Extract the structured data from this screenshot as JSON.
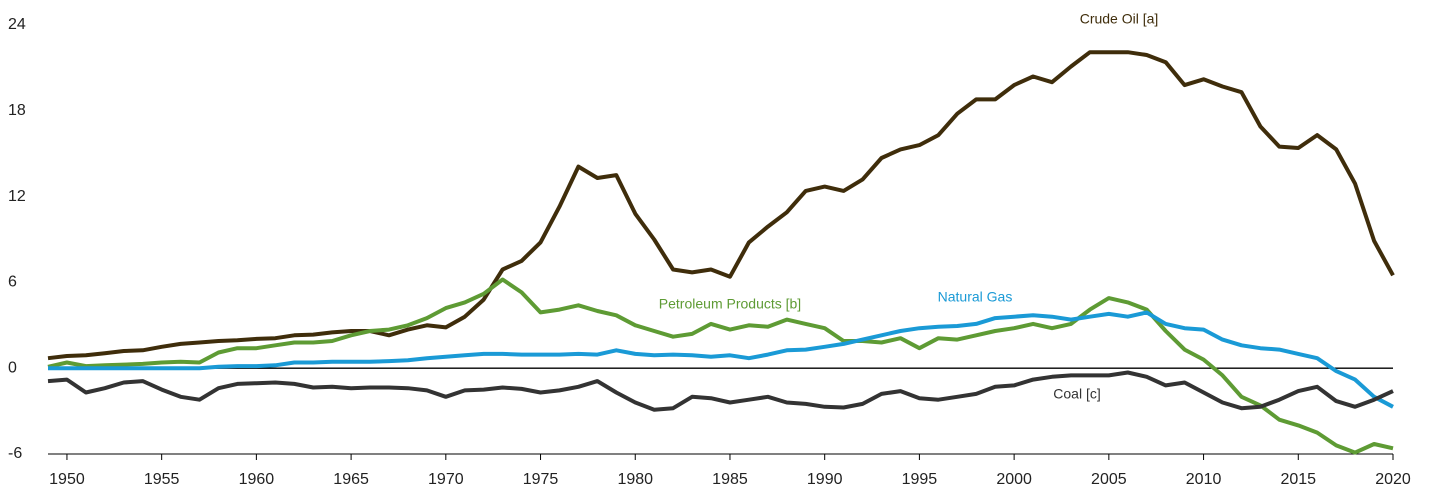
{
  "chart_data": {
    "type": "line",
    "x": [
      1949,
      1950,
      1951,
      1952,
      1953,
      1954,
      1955,
      1956,
      1957,
      1958,
      1959,
      1960,
      1961,
      1962,
      1963,
      1964,
      1965,
      1966,
      1967,
      1968,
      1969,
      1970,
      1971,
      1972,
      1973,
      1974,
      1975,
      1976,
      1977,
      1978,
      1979,
      1980,
      1981,
      1982,
      1983,
      1984,
      1985,
      1986,
      1987,
      1988,
      1989,
      1990,
      1991,
      1992,
      1993,
      1994,
      1995,
      1996,
      1997,
      1998,
      1999,
      2000,
      2001,
      2002,
      2003,
      2004,
      2005,
      2006,
      2007,
      2008,
      2009,
      2010,
      2011,
      2012,
      2013,
      2014,
      2015,
      2016,
      2017,
      2018,
      2019,
      2020
    ],
    "series": [
      {
        "name": "Crude Oil [a]",
        "color": "#3f2d0b",
        "values": [
          0.7,
          0.85,
          0.9,
          1.05,
          1.2,
          1.25,
          1.5,
          1.7,
          1.8,
          1.9,
          1.95,
          2.05,
          2.1,
          2.3,
          2.35,
          2.5,
          2.6,
          2.6,
          2.3,
          2.7,
          3.0,
          2.85,
          3.6,
          4.8,
          6.9,
          7.5,
          8.8,
          11.3,
          14.1,
          13.3,
          13.5,
          10.8,
          9.0,
          6.9,
          6.7,
          6.9,
          6.4,
          8.8,
          9.9,
          10.9,
          12.4,
          12.7,
          12.4,
          13.2,
          14.7,
          15.3,
          15.6,
          16.3,
          17.8,
          18.8,
          18.8,
          19.8,
          20.4,
          20.0,
          21.1,
          22.1,
          22.1,
          22.1,
          21.9,
          21.4,
          19.8,
          20.2,
          19.7,
          19.3,
          16.9,
          15.5,
          15.4,
          16.3,
          15.3,
          12.9,
          8.9,
          6.5
        ]
      },
      {
        "name": "Petroleum Products [b]",
        "color": "#5e9b34",
        "values": [
          0.1,
          0.4,
          0.15,
          0.2,
          0.25,
          0.3,
          0.4,
          0.45,
          0.4,
          1.1,
          1.4,
          1.4,
          1.6,
          1.8,
          1.8,
          1.9,
          2.3,
          2.6,
          2.7,
          3.0,
          3.5,
          4.2,
          4.6,
          5.2,
          6.2,
          5.3,
          3.9,
          4.1,
          4.4,
          4.0,
          3.7,
          3.0,
          2.6,
          2.2,
          2.4,
          3.1,
          2.7,
          3.0,
          2.9,
          3.4,
          3.1,
          2.8,
          1.9,
          1.9,
          1.8,
          2.1,
          1.4,
          2.1,
          2.0,
          2.3,
          2.6,
          2.8,
          3.1,
          2.8,
          3.1,
          4.1,
          4.9,
          4.6,
          4.1,
          2.6,
          1.3,
          0.6,
          -0.5,
          -2.0,
          -2.6,
          -3.6,
          -4.0,
          -4.5,
          -5.4,
          -5.9,
          -5.3,
          -5.6
        ]
      },
      {
        "name": "Natural Gas",
        "color": "#1a9ad6",
        "values": [
          0,
          0,
          0,
          0,
          0,
          0,
          0,
          0,
          0,
          0.1,
          0.15,
          0.15,
          0.2,
          0.4,
          0.4,
          0.45,
          0.45,
          0.45,
          0.5,
          0.55,
          0.7,
          0.8,
          0.9,
          1.0,
          1.0,
          0.95,
          0.95,
          0.95,
          1.0,
          0.95,
          1.25,
          1.0,
          0.9,
          0.95,
          0.9,
          0.8,
          0.9,
          0.7,
          0.95,
          1.25,
          1.3,
          1.5,
          1.7,
          2.0,
          2.3,
          2.6,
          2.8,
          2.9,
          2.95,
          3.1,
          3.5,
          3.6,
          3.7,
          3.6,
          3.4,
          3.6,
          3.8,
          3.6,
          3.9,
          3.1,
          2.8,
          2.7,
          2.0,
          1.6,
          1.4,
          1.3,
          1.0,
          0.7,
          -0.2,
          -0.8,
          -2.0,
          -2.7
        ]
      },
      {
        "name": "Coal [c]",
        "color": "#333333",
        "values": [
          -0.9,
          -0.8,
          -1.7,
          -1.4,
          -1.0,
          -0.9,
          -1.5,
          -2.0,
          -2.2,
          -1.4,
          -1.1,
          -1.05,
          -1.0,
          -1.1,
          -1.35,
          -1.3,
          -1.4,
          -1.35,
          -1.35,
          -1.4,
          -1.55,
          -2.0,
          -1.55,
          -1.5,
          -1.35,
          -1.45,
          -1.7,
          -1.55,
          -1.3,
          -0.9,
          -1.7,
          -2.4,
          -2.9,
          -2.8,
          -2.0,
          -2.1,
          -2.4,
          -2.2,
          -2.0,
          -2.4,
          -2.5,
          -2.7,
          -2.75,
          -2.5,
          -1.8,
          -1.6,
          -2.1,
          -2.2,
          -2.0,
          -1.8,
          -1.3,
          -1.2,
          -0.8,
          -0.6,
          -0.5,
          -0.5,
          -0.5,
          -0.3,
          -0.6,
          -1.2,
          -1.0,
          -1.7,
          -2.4,
          -2.8,
          -2.7,
          -2.2,
          -1.6,
          -1.3,
          -2.3,
          -2.7,
          -2.2,
          -1.6
        ]
      }
    ],
    "xlim": [
      1949,
      2020
    ],
    "xticks": [
      1950,
      1955,
      1960,
      1965,
      1970,
      1975,
      1980,
      1985,
      1990,
      1995,
      2000,
      2005,
      2010,
      2015,
      2020
    ],
    "ylim": [
      -6,
      24
    ],
    "yticks": [
      -6,
      0,
      6,
      12,
      18,
      24
    ]
  }
}
